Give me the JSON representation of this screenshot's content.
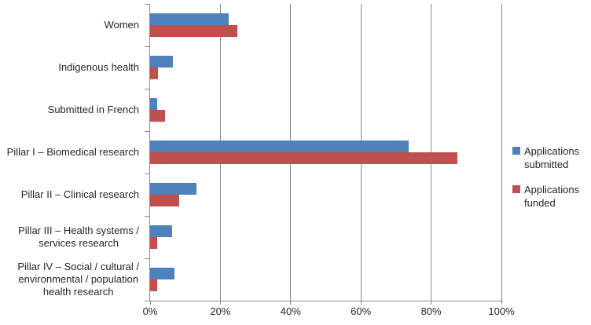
{
  "chart_data": {
    "type": "bar",
    "orientation": "horizontal",
    "title": "",
    "categories": [
      {
        "lines": [
          "Women"
        ]
      },
      {
        "lines": [
          "Indigenous health"
        ]
      },
      {
        "lines": [
          "Submitted in French"
        ]
      },
      {
        "lines": [
          "Pillar I – Biomedical research"
        ]
      },
      {
        "lines": [
          "Pillar II – Clinical research"
        ]
      },
      {
        "lines": [
          "Pillar III – Health systems /",
          "services research"
        ]
      },
      {
        "lines": [
          "Pillar IV – Social / cultural /",
          "environmental / population",
          "health research"
        ]
      }
    ],
    "series": [
      {
        "name": "Applications submitted",
        "legend_lines": [
          "Applications",
          "submitted"
        ],
        "color": "#4F81BD",
        "values": [
          22.3,
          6.5,
          2,
          73.5,
          13.3,
          6.3,
          7
        ]
      },
      {
        "name": "Applications funded",
        "legend_lines": [
          "Applications",
          "funded"
        ],
        "color": "#C0504D",
        "values": [
          24.8,
          2.2,
          4.3,
          87.5,
          8.3,
          2.1,
          2.1
        ]
      }
    ],
    "x_axis": {
      "min": 0,
      "max": 100,
      "ticks": [
        {
          "value": 0,
          "label": "0%"
        },
        {
          "value": 20,
          "label": "20%"
        },
        {
          "value": 40,
          "label": "40%"
        },
        {
          "value": 60,
          "label": "60%"
        },
        {
          "value": 80,
          "label": "80%"
        },
        {
          "value": 100,
          "label": "100%"
        }
      ],
      "gridlines": true
    },
    "legend_position": "right"
  },
  "colors": {
    "submitted": "#4F81BD",
    "funded": "#C0504D",
    "axis": "#8A8A8A",
    "gridline": "#8A8A8A",
    "text": "#262626",
    "background": "#FFFFFF"
  }
}
